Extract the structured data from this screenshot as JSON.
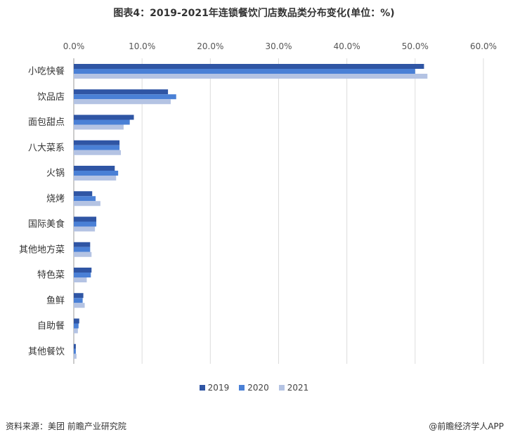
{
  "colors": {
    "2019": "#2f55a4",
    "2020": "#4a80d6",
    "2021": "#b4c3e3",
    "grid": "#dcdcdc",
    "axis": "#999999"
  },
  "chart_data": {
    "type": "bar",
    "orientation": "horizontal",
    "title": "图表4：2019-2021年连锁餐饮门店数品类分布变化(单位：%)",
    "categories": [
      "小吃快餐",
      "饮品店",
      "面包甜点",
      "八大菜系",
      "火锅",
      "烧烤",
      "国际美食",
      "其他地方菜",
      "特色菜",
      "鱼鲜",
      "自助餐",
      "其他餐饮"
    ],
    "series": [
      {
        "name": "2019",
        "values": [
          51.3,
          13.8,
          8.8,
          6.7,
          6.0,
          2.7,
          3.3,
          2.4,
          2.6,
          1.4,
          0.8,
          0.3
        ]
      },
      {
        "name": "2020",
        "values": [
          50.0,
          15.0,
          8.2,
          6.7,
          6.5,
          3.2,
          3.3,
          2.4,
          2.5,
          1.3,
          0.7,
          0.3
        ]
      },
      {
        "name": "2021",
        "values": [
          51.8,
          14.2,
          7.3,
          6.9,
          6.2,
          3.9,
          3.1,
          2.6,
          1.9,
          1.6,
          0.6,
          0.4
        ]
      }
    ],
    "xlim": [
      0,
      60
    ],
    "xticks": [
      "0.0%",
      "10.0%",
      "20.0%",
      "30.0%",
      "40.0%",
      "50.0%",
      "60.0%"
    ],
    "grid": "vertical",
    "legend_position": "bottom"
  },
  "footer": {
    "source": "资料来源：美团 前瞻产业研究院",
    "brand": "@前瞻经济学人APP"
  }
}
